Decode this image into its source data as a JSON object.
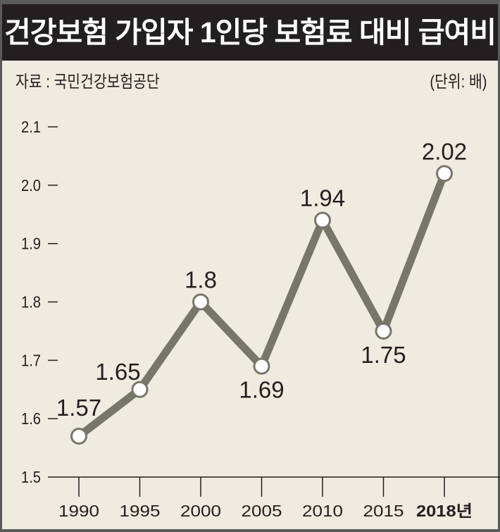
{
  "title": "건강보험 가입자 1인당 보험료 대비 급여비",
  "source": "자료 : 국민건강보험공단",
  "unit": "(단위: 배)",
  "chart_data": {
    "type": "line",
    "title": "건강보험 가입자 1인당 보험료 대비 급여비",
    "xlabel": "",
    "ylabel": "",
    "categories": [
      "1990",
      "1995",
      "2000",
      "2005",
      "2010",
      "2015",
      "2018년"
    ],
    "values": [
      1.57,
      1.65,
      1.8,
      1.69,
      1.94,
      1.75,
      2.02
    ],
    "data_labels": [
      "1.57",
      "1.65",
      "1.8",
      "1.69",
      "1.94",
      "1.75",
      "2.02"
    ],
    "label_positions": [
      "above-left",
      "above-left",
      "above",
      "below",
      "above",
      "below",
      "above"
    ],
    "yticks": [
      1.5,
      1.6,
      1.7,
      1.8,
      1.9,
      2.0,
      2.1
    ],
    "ytick_labels": [
      "1.5",
      "1.6",
      "1.7",
      "1.8",
      "1.9",
      "2.0",
      "2.1"
    ],
    "ylim": [
      1.5,
      2.1
    ],
    "grid": false,
    "line_color": "#77766a",
    "marker_fill": "#ffffff"
  }
}
